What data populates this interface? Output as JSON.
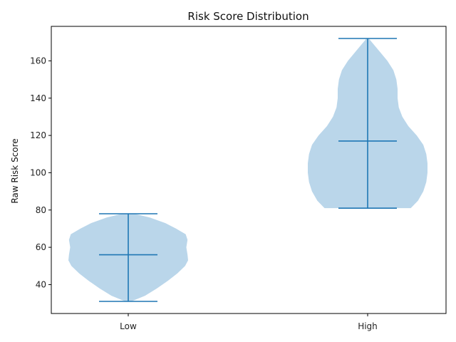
{
  "chart_data": {
    "type": "violin",
    "title": "Risk Score Distribution",
    "xlabel": "",
    "ylabel": "Raw Risk Score",
    "categories": [
      "Low",
      "High"
    ],
    "ylim": [
      24.5,
      178.5
    ],
    "yticks": [
      40,
      60,
      80,
      100,
      120,
      140,
      160
    ],
    "grid": false,
    "series": [
      {
        "category": "Low",
        "min": 31,
        "median": 56,
        "max": 78,
        "density": [
          [
            31,
            0.05
          ],
          [
            34,
            0.28
          ],
          [
            38,
            0.48
          ],
          [
            42,
            0.66
          ],
          [
            46,
            0.82
          ],
          [
            50,
            0.95
          ],
          [
            53,
            1.0
          ],
          [
            56,
            0.99
          ],
          [
            60,
            0.97
          ],
          [
            64,
            0.99
          ],
          [
            67,
            0.96
          ],
          [
            70,
            0.8
          ],
          [
            73,
            0.62
          ],
          [
            76,
            0.36
          ],
          [
            78,
            0.1
          ]
        ]
      },
      {
        "category": "High",
        "min": 81,
        "median": 117,
        "max": 172,
        "density": [
          [
            81,
            0.72
          ],
          [
            85,
            0.84
          ],
          [
            90,
            0.93
          ],
          [
            95,
            0.98
          ],
          [
            100,
            1.0
          ],
          [
            105,
            1.0
          ],
          [
            110,
            0.98
          ],
          [
            115,
            0.93
          ],
          [
            120,
            0.82
          ],
          [
            125,
            0.68
          ],
          [
            130,
            0.58
          ],
          [
            135,
            0.52
          ],
          [
            140,
            0.5
          ],
          [
            145,
            0.5
          ],
          [
            150,
            0.48
          ],
          [
            155,
            0.43
          ],
          [
            160,
            0.33
          ],
          [
            165,
            0.2
          ],
          [
            170,
            0.07
          ],
          [
            172,
            0.02
          ]
        ]
      }
    ],
    "colors": {
      "body": "#bad6ea",
      "lines": "#1f77b4",
      "axes": "#000000"
    }
  }
}
